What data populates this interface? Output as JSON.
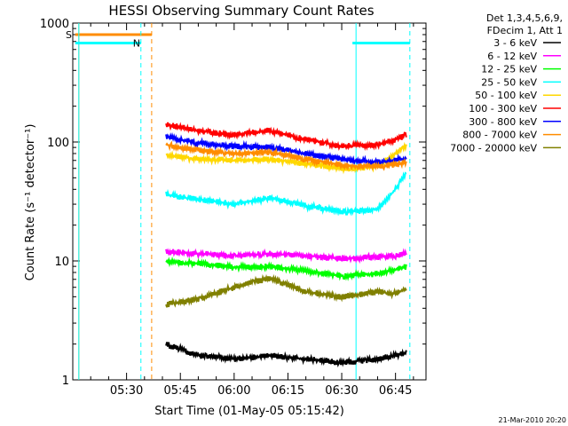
{
  "chart_data": {
    "type": "line",
    "title": "HESSI Observing Summary Count Rates",
    "xlabel": "Start Time (01-May-05 05:15:42)",
    "ylabel": "Count Rate (s⁻¹ detector⁻¹)",
    "yscale": "log",
    "ylim": [
      1,
      1000
    ],
    "xlim_minutes_after_0515": [
      0,
      98.5
    ],
    "x_ticks": [
      "05:30",
      "05:45",
      "06:00",
      "06:15",
      "06:30",
      "06:45"
    ],
    "y_ticks": [
      "1",
      "10",
      "100",
      "1000"
    ],
    "legend_header": [
      "Det 1,3,4,5,6,9,",
      "FDecim 1, Att 1"
    ],
    "legend_position": "top-right, outside plot",
    "timestamp": "21-Mar-2010 20:20",
    "x_points": [
      "05:41",
      "05:50",
      "06:00",
      "06:10",
      "06:20",
      "06:30",
      "06:40",
      "06:45",
      "06:48"
    ],
    "series": [
      {
        "name": "3 - 6 keV",
        "color": "#000000",
        "values": [
          2,
          1.6,
          1.5,
          1.6,
          1.5,
          1.4,
          1.5,
          1.6,
          1.7
        ]
      },
      {
        "name": "6 - 12 keV",
        "color": "#ff00ff",
        "values": [
          12,
          11.5,
          11,
          11.5,
          11,
          10.5,
          10.8,
          11,
          11.5
        ]
      },
      {
        "name": "12 - 25 keV",
        "color": "#00ff00",
        "values": [
          10,
          9.5,
          8.8,
          9,
          8.2,
          7.5,
          7.8,
          8.5,
          9
        ]
      },
      {
        "name": "25 - 50 keV",
        "color": "#00ffff",
        "values": [
          36,
          33,
          30,
          34,
          29,
          26,
          27,
          40,
          55
        ]
      },
      {
        "name": "50 - 100 keV",
        "color": "#ffd700",
        "values": [
          78,
          72,
          70,
          72,
          66,
          60,
          62,
          80,
          95
        ]
      },
      {
        "name": "100 - 300 keV",
        "color": "#ff0000",
        "values": [
          140,
          125,
          115,
          125,
          105,
          92,
          95,
          105,
          115
        ]
      },
      {
        "name": "300 - 800 keV",
        "color": "#0000ff",
        "values": [
          110,
          98,
          92,
          90,
          80,
          72,
          68,
          70,
          72
        ]
      },
      {
        "name": "800 - 7000 keV",
        "color": "#ff8c00",
        "values": [
          95,
          85,
          80,
          82,
          72,
          64,
          62,
          65,
          67
        ]
      },
      {
        "name": "7000 - 20000 keV",
        "color": "#808000",
        "values": [
          4.3,
          4.8,
          6,
          7.2,
          5.5,
          5,
          5.5,
          5.3,
          5.8
        ]
      }
    ],
    "annotations": [
      {
        "label": "S",
        "color": "#ff8c00",
        "bar_start": "05:15:42",
        "bar_end": "05:37",
        "level": 800
      },
      {
        "label": "N",
        "color": "#00ffff",
        "bar_start": "05:15:42",
        "bar_end": "05:34",
        "level": 680
      },
      {
        "label": "",
        "color": "#00ffff",
        "bar_start": "06:33",
        "bar_end": "06:49",
        "level": 680
      }
    ]
  }
}
